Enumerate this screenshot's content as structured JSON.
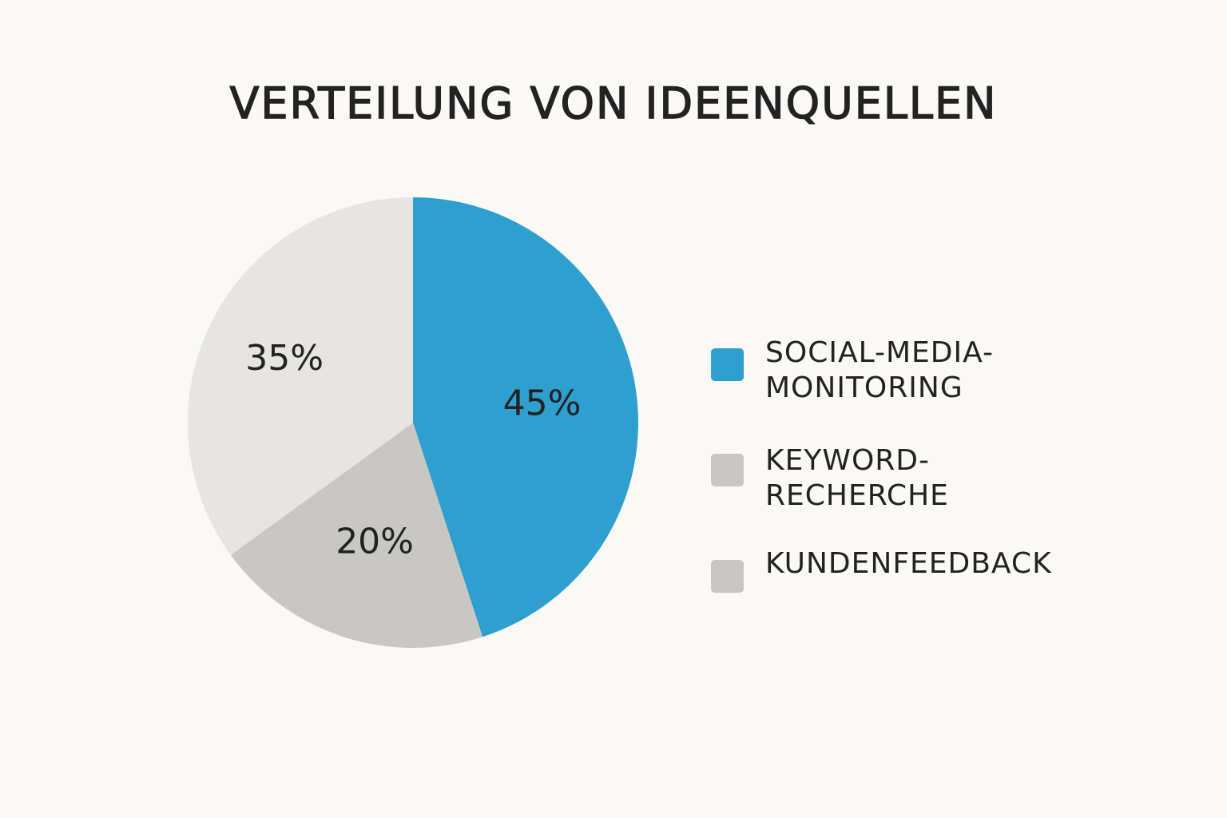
{
  "chart_data": {
    "type": "pie",
    "title": "VERTEILUNG VON IDEENQUELLEN",
    "slices": [
      {
        "value": 45,
        "label": "45%",
        "color": "#2e9fce"
      },
      {
        "value": 20,
        "label": "20%",
        "color": "#c9c7c4"
      },
      {
        "value": 35,
        "label": "35%",
        "color": "#e6e5e2"
      }
    ],
    "legend": [
      {
        "name": "SOCIAL-MEDIA-\nMONITORING",
        "color": "#2e9fce"
      },
      {
        "name": "KEYWORD-\nRECHERCHE",
        "color": "#c9c7c4"
      },
      {
        "name": "KUNDENFEEDBACK",
        "color": "#c9c7c4"
      }
    ],
    "legend_position": "right"
  }
}
